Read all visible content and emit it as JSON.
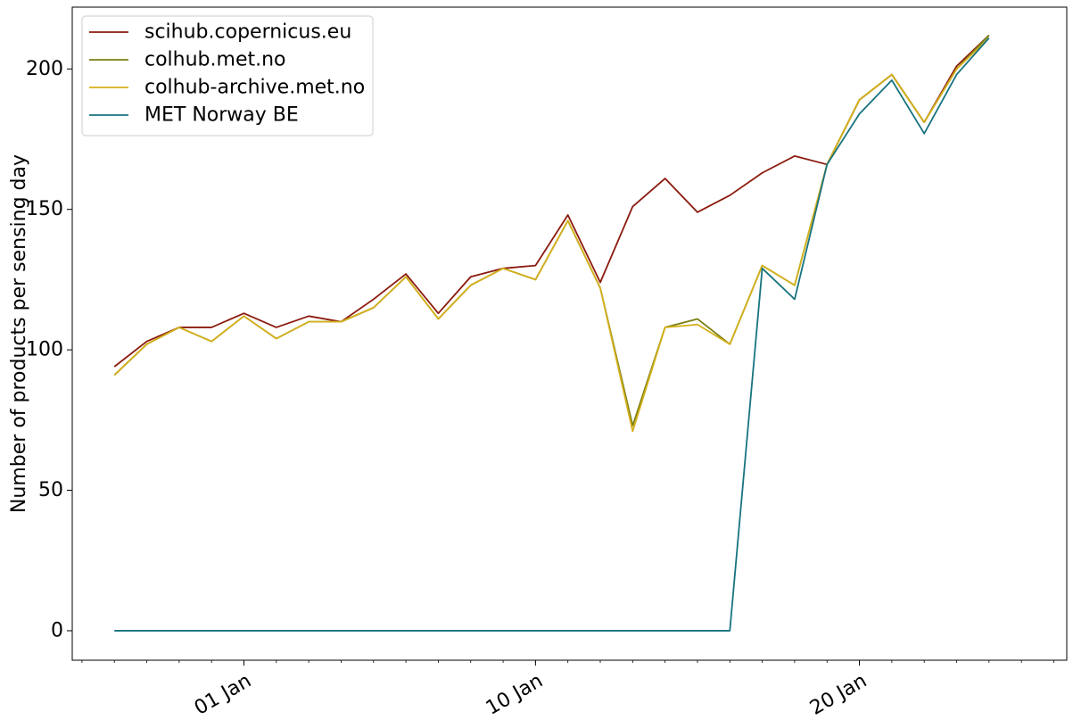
{
  "chart_data": {
    "type": "line",
    "title": "",
    "xlabel": "",
    "ylabel": "Number of products per sensing day",
    "x": [
      "2022-12-28",
      "2022-12-29",
      "2022-12-30",
      "2022-12-31",
      "2023-01-01",
      "2023-01-02",
      "2023-01-03",
      "2023-01-04",
      "2023-01-05",
      "2023-01-06",
      "2023-01-07",
      "2023-01-08",
      "2023-01-09",
      "2023-01-10",
      "2023-01-11",
      "2023-01-12",
      "2023-01-13",
      "2023-01-14",
      "2023-01-15",
      "2023-01-16",
      "2023-01-17",
      "2023-01-18",
      "2023-01-19",
      "2023-01-20",
      "2023-01-21",
      "2023-01-22",
      "2023-01-23",
      "2023-01-24",
      "2023-01-25"
    ],
    "xlim": [
      "2022-12-26.7",
      "2023-01-26.4"
    ],
    "xticks": [
      {
        "date": "2023-01-01",
        "label": "01 Jan"
      },
      {
        "date": "2023-01-10",
        "label": "10 Jan"
      },
      {
        "date": "2023-01-20",
        "label": "20 Jan"
      }
    ],
    "ylim": [
      -10.5,
      222
    ],
    "yticks": [
      {
        "value": 0,
        "label": "0"
      },
      {
        "value": 50,
        "label": "50"
      },
      {
        "value": 100,
        "label": "100"
      },
      {
        "value": 150,
        "label": "150"
      },
      {
        "value": 200,
        "label": "200"
      }
    ],
    "grid": false,
    "legend_position": "top-left",
    "series": [
      {
        "name": "scihub.copernicus.eu",
        "color": "#8b1a0e",
        "values": [
          94,
          103,
          108,
          108,
          113,
          108,
          112,
          110,
          118,
          127,
          113,
          126,
          129,
          130,
          148,
          124,
          151,
          161,
          149,
          155,
          163,
          169,
          166,
          189,
          198,
          181,
          201,
          212,
          null
        ]
      },
      {
        "name": "colhub.met.no",
        "color": "#7a7f12",
        "values": [
          91,
          102,
          108,
          103,
          112,
          104,
          110,
          110,
          115,
          126,
          111,
          123,
          129,
          125,
          146,
          122,
          73,
          108,
          111,
          102,
          130,
          123,
          166,
          189,
          198,
          181,
          200,
          212,
          null
        ]
      },
      {
        "name": "colhub-archive.met.no",
        "color": "#d4b01a",
        "values": [
          91,
          102,
          108,
          103,
          112,
          104,
          110,
          110,
          115,
          126,
          111,
          123,
          129,
          125,
          146,
          122,
          71,
          108,
          109,
          102,
          130,
          123,
          166,
          189,
          198,
          181,
          200,
          211,
          null
        ]
      },
      {
        "name": "MET Norway BE",
        "color": "#17737f",
        "values": [
          0,
          0,
          0,
          0,
          0,
          0,
          0,
          0,
          0,
          0,
          0,
          0,
          0,
          0,
          0,
          0,
          0,
          0,
          0,
          0,
          129,
          118,
          166,
          184,
          196,
          177,
          198,
          211,
          null
        ]
      }
    ]
  }
}
